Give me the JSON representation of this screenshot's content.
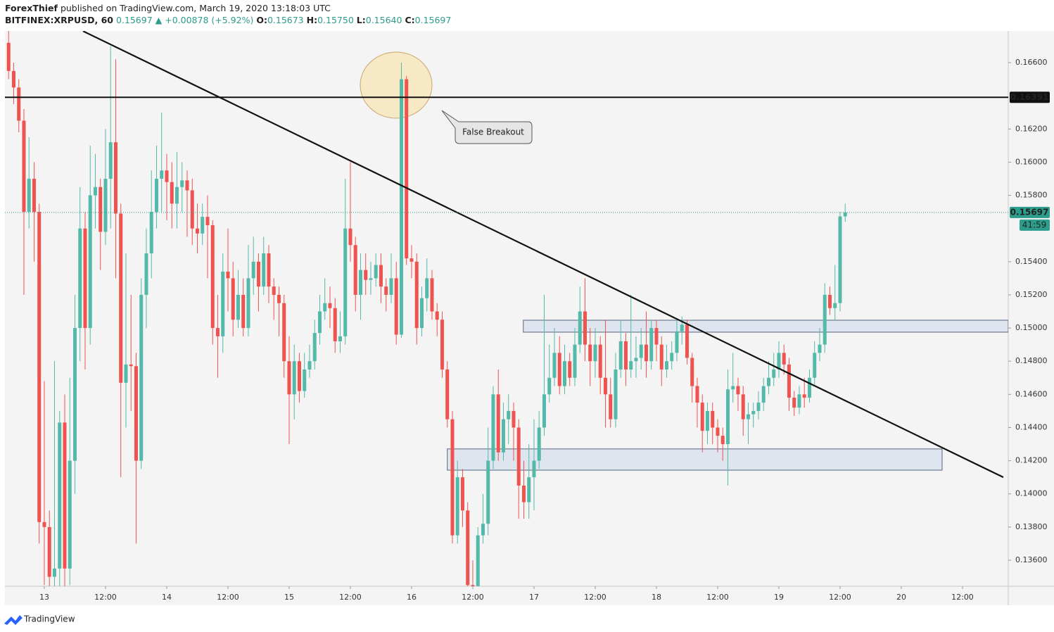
{
  "header": {
    "author": "ForexThief",
    "published": "published on TradingView.com, March 19, 2020 13:18:03 UTC",
    "symbol": "BITFINEX:XRPUSD, 60",
    "last": "0.15697",
    "change": "▲ +0.00878 (+5.92%)",
    "ohlc": [
      {
        "label": "O:",
        "value": "0.15673"
      },
      {
        "label": "H:",
        "value": "0.15750"
      },
      {
        "label": "L:",
        "value": "0.15640"
      },
      {
        "label": "C:",
        "value": "0.15697"
      }
    ]
  },
  "footer": "TradingView",
  "chart_data": {
    "type": "candlestick",
    "up_color": "#53b9a8",
    "down_color": "#ef5350",
    "grid": false,
    "xlim": [
      -7.72,
      188.97
    ],
    "ylim": [
      0.13443,
      0.16791
    ],
    "xticks": [
      {
        "value": 0,
        "label": "13"
      },
      {
        "value": 12,
        "label": "12:00"
      },
      {
        "value": 24,
        "label": "14"
      },
      {
        "value": 36,
        "label": "12:00"
      },
      {
        "value": 48,
        "label": "15"
      },
      {
        "value": 60,
        "label": "12:00"
      },
      {
        "value": 72,
        "label": "16"
      },
      {
        "value": 84,
        "label": "12:00"
      },
      {
        "value": 96,
        "label": "17"
      },
      {
        "value": 108,
        "label": "12:00"
      },
      {
        "value": 120,
        "label": "18"
      },
      {
        "value": 132,
        "label": "12:00"
      },
      {
        "value": 144,
        "label": "19"
      },
      {
        "value": 156,
        "label": "12:00"
      },
      {
        "value": 168,
        "label": "20"
      },
      {
        "value": 180,
        "label": "12:00"
      }
    ],
    "yticks": [
      {
        "value": 0.166,
        "label": "0.16600"
      },
      {
        "value": 0.162,
        "label": "0.16200"
      },
      {
        "value": 0.16,
        "label": "0.16000"
      },
      {
        "value": 0.158,
        "label": "0.15800"
      },
      {
        "value": 0.154,
        "label": "0.15400"
      },
      {
        "value": 0.152,
        "label": "0.15200"
      },
      {
        "value": 0.15,
        "label": "0.15000"
      },
      {
        "value": 0.148,
        "label": "0.14800"
      },
      {
        "value": 0.146,
        "label": "0.14600"
      },
      {
        "value": 0.144,
        "label": "0.14400"
      },
      {
        "value": 0.142,
        "label": "0.14200"
      },
      {
        "value": 0.14,
        "label": "0.14000"
      },
      {
        "value": 0.138,
        "label": "0.13800"
      },
      {
        "value": 0.136,
        "label": "0.13600"
      }
    ],
    "x": [
      -7,
      -6,
      -5,
      -4,
      -3,
      -2,
      -1,
      0,
      1,
      2,
      3,
      4,
      5,
      6,
      7,
      8,
      9,
      10,
      11,
      12,
      13,
      14,
      15,
      16,
      17,
      18,
      19,
      20,
      21,
      22,
      23,
      24,
      25,
      26,
      27,
      28,
      29,
      30,
      31,
      32,
      33,
      34,
      35,
      36,
      37,
      38,
      39,
      40,
      41,
      42,
      43,
      44,
      45,
      46,
      47,
      48,
      49,
      50,
      51,
      52,
      53,
      54,
      55,
      56,
      57,
      58,
      59,
      60,
      61,
      62,
      63,
      64,
      65,
      66,
      67,
      68,
      69,
      70,
      71,
      72,
      73,
      74,
      75,
      76,
      77,
      78,
      79,
      80,
      81,
      82,
      83,
      84,
      85,
      86,
      87,
      88,
      89,
      90,
      91,
      92,
      93,
      94,
      95,
      96,
      97,
      98,
      99,
      100,
      101,
      102,
      103,
      104,
      105,
      106,
      107,
      108,
      109,
      110,
      111,
      112,
      113,
      114,
      115,
      116,
      117,
      118,
      119,
      120,
      121,
      122,
      123,
      124,
      125,
      126,
      127,
      128,
      129,
      130,
      131,
      132,
      133,
      134,
      135,
      136,
      137,
      138,
      139,
      140,
      141,
      142,
      143,
      144,
      145,
      146,
      147,
      148,
      149,
      150,
      151,
      152,
      153,
      154,
      155,
      156,
      157
    ],
    "open": [
      0.1672,
      0.1655,
      0.1645,
      0.1625,
      0.157,
      0.159,
      0.157,
      0.1383,
      0.138,
      0.135,
      0.1355,
      0.1443,
      0.1355,
      0.142,
      0.15,
      0.156,
      0.15,
      0.158,
      0.1585,
      0.1558,
      0.159,
      0.1612,
      0.1569,
      0.1467,
      0.1478,
      0.1477,
      0.142,
      0.152,
      0.1545,
      0.157,
      0.159,
      0.1595,
      0.1588,
      0.1575,
      0.1585,
      0.1589,
      0.1583,
      0.156,
      0.1557,
      0.1567,
      0.1562,
      0.15,
      0.1495,
      0.1534,
      0.153,
      0.1505,
      0.152,
      0.15,
      0.153,
      0.154,
      0.1525,
      0.1545,
      0.1525,
      0.152,
      0.1515,
      0.148,
      0.146,
      0.148,
      0.1462,
      0.1475,
      0.148,
      0.1497,
      0.151,
      0.1515,
      0.1512,
      0.1492,
      0.1495,
      0.156,
      0.155,
      0.152,
      0.1535,
      0.1529,
      0.153,
      0.1538,
      0.1525,
      0.152,
      0.153,
      0.1496,
      0.165,
      0.1542,
      0.154,
      0.15,
      0.1518,
      0.153,
      0.151,
      0.1505,
      0.1475,
      0.1445,
      0.1375,
      0.141,
      0.139,
      0.1345,
      0.134,
      0.1375,
      0.1382,
      0.142,
      0.146,
      0.1425,
      0.1445,
      0.145,
      0.144,
      0.1405,
      0.1395,
      0.141,
      0.142,
      0.144,
      0.146,
      0.147,
      0.1485,
      0.1465,
      0.148,
      0.147,
      0.149,
      0.151,
      0.149,
      0.148,
      0.149,
      0.147,
      0.146,
      0.1445,
      0.1475,
      0.1492,
      0.1475,
      0.148,
      0.1482,
      0.149,
      0.148,
      0.15,
      0.149,
      0.1475,
      0.148,
      0.1485,
      0.1498,
      0.1502,
      0.1482,
      0.1465,
      0.1455,
      0.1438,
      0.145,
      0.144,
      0.1435,
      0.143,
      0.1463,
      0.1465,
      0.146,
      0.1445,
      0.1448,
      0.145,
      0.1455,
      0.1465,
      0.147,
      0.1475,
      0.1485,
      0.1478,
      0.1458,
      0.1452,
      0.146,
      0.1458,
      0.147,
      0.1485,
      0.149,
      0.152,
      0.1512,
      0.1515,
      0.15673
    ],
    "high": [
      0.168,
      0.166,
      0.165,
      0.1632,
      0.1615,
      0.16,
      0.1575,
      0.1468,
      0.139,
      0.148,
      0.145,
      0.146,
      0.147,
      0.152,
      0.1585,
      0.157,
      0.161,
      0.1605,
      0.159,
      0.162,
      0.167,
      0.1662,
      0.1575,
      0.1545,
      0.152,
      0.1485,
      0.153,
      0.156,
      0.1595,
      0.161,
      0.163,
      0.1605,
      0.16,
      0.1606,
      0.16,
      0.1595,
      0.159,
      0.1575,
      0.1575,
      0.158,
      0.1565,
      0.152,
      0.1545,
      0.156,
      0.154,
      0.1535,
      0.153,
      0.155,
      0.1555,
      0.1545,
      0.1555,
      0.155,
      0.153,
      0.1525,
      0.152,
      0.1495,
      0.149,
      0.1485,
      0.1485,
      0.149,
      0.1505,
      0.152,
      0.153,
      0.1525,
      0.1518,
      0.151,
      0.159,
      0.16,
      0.1555,
      0.1545,
      0.1545,
      0.154,
      0.1545,
      0.1545,
      0.153,
      0.1545,
      0.154,
      0.166,
      0.1652,
      0.155,
      0.1545,
      0.1525,
      0.1542,
      0.1535,
      0.1515,
      0.151,
      0.148,
      0.145,
      0.142,
      0.1415,
      0.1395,
      0.136,
      0.138,
      0.14,
      0.144,
      0.1465,
      0.1475,
      0.1455,
      0.146,
      0.1455,
      0.1445,
      0.142,
      0.143,
      0.1445,
      0.145,
      0.152,
      0.149,
      0.15,
      0.1495,
      0.149,
      0.1485,
      0.15,
      0.1525,
      0.153,
      0.15,
      0.15,
      0.1495,
      0.1505,
      0.147,
      0.1485,
      0.1505,
      0.1497,
      0.152,
      0.1495,
      0.15,
      0.151,
      0.1505,
      0.1505,
      0.1495,
      0.149,
      0.1492,
      0.1505,
      0.1507,
      0.1505,
      0.1485,
      0.147,
      0.146,
      0.1455,
      0.1455,
      0.1445,
      0.144,
      0.1475,
      0.1485,
      0.147,
      0.1465,
      0.1455,
      0.1455,
      0.1462,
      0.147,
      0.148,
      0.1485,
      0.1492,
      0.149,
      0.1482,
      0.1462,
      0.1465,
      0.147,
      0.1475,
      0.1492,
      0.15,
      0.1527,
      0.1525,
      0.1538,
      0.157,
      0.1575
    ],
    "low": [
      0.165,
      0.1635,
      0.1618,
      0.152,
      0.156,
      0.154,
      0.137,
      0.1345,
      0.134,
      0.134,
      0.134,
      0.134,
      0.1345,
      0.14,
      0.148,
      0.1475,
      0.149,
      0.156,
      0.1535,
      0.155,
      0.156,
      0.153,
      0.141,
      0.144,
      0.145,
      0.137,
      0.1415,
      0.15,
      0.153,
      0.156,
      0.157,
      0.1565,
      0.156,
      0.156,
      0.157,
      0.1555,
      0.155,
      0.1545,
      0.155,
      0.153,
      0.149,
      0.147,
      0.1485,
      0.151,
      0.1495,
      0.15,
      0.1495,
      0.1495,
      0.152,
      0.151,
      0.152,
      0.1515,
      0.1505,
      0.1495,
      0.147,
      0.143,
      0.1445,
      0.1455,
      0.1458,
      0.147,
      0.1475,
      0.149,
      0.1505,
      0.15,
      0.1485,
      0.1485,
      0.149,
      0.154,
      0.151,
      0.1505,
      0.152,
      0.152,
      0.1525,
      0.1515,
      0.151,
      0.1515,
      0.149,
      0.1494,
      0.1538,
      0.153,
      0.149,
      0.1495,
      0.151,
      0.1505,
      0.1495,
      0.147,
      0.144,
      0.137,
      0.137,
      0.138,
      0.1335,
      0.133,
      0.1335,
      0.137,
      0.1375,
      0.1415,
      0.142,
      0.142,
      0.143,
      0.142,
      0.1385,
      0.1385,
      0.1385,
      0.139,
      0.1415,
      0.1435,
      0.1455,
      0.1465,
      0.146,
      0.146,
      0.1465,
      0.1465,
      0.1485,
      0.148,
      0.1465,
      0.147,
      0.146,
      0.144,
      0.144,
      0.144,
      0.147,
      0.1465,
      0.147,
      0.147,
      0.1475,
      0.147,
      0.1475,
      0.148,
      0.1465,
      0.147,
      0.1475,
      0.148,
      0.149,
      0.1478,
      0.1455,
      0.144,
      0.1425,
      0.143,
      0.143,
      0.1425,
      0.142,
      0.1405,
      0.1455,
      0.145,
      0.1435,
      0.143,
      0.144,
      0.1445,
      0.145,
      0.146,
      0.1465,
      0.147,
      0.1472,
      0.145,
      0.1447,
      0.1448,
      0.1452,
      0.1455,
      0.1466,
      0.148,
      0.1485,
      0.1508,
      0.1505,
      0.151,
      0.1564
    ],
    "close": [
      0.1655,
      0.1645,
      0.1625,
      0.157,
      0.159,
      0.157,
      0.1383,
      0.138,
      0.135,
      0.1355,
      0.1443,
      0.1355,
      0.142,
      0.15,
      0.156,
      0.15,
      0.158,
      0.1585,
      0.1558,
      0.159,
      0.1612,
      0.1569,
      0.1467,
      0.1478,
      0.1477,
      0.142,
      0.152,
      0.1545,
      0.157,
      0.159,
      0.1595,
      0.1588,
      0.1575,
      0.1585,
      0.1589,
      0.1583,
      0.156,
      0.1557,
      0.1567,
      0.1562,
      0.15,
      0.1495,
      0.1534,
      0.153,
      0.1505,
      0.152,
      0.15,
      0.153,
      0.154,
      0.1525,
      0.1545,
      0.1525,
      0.152,
      0.1515,
      0.148,
      0.146,
      0.148,
      0.1462,
      0.1475,
      0.148,
      0.1497,
      0.151,
      0.1515,
      0.1512,
      0.1492,
      0.1495,
      0.156,
      0.155,
      0.152,
      0.1535,
      0.1529,
      0.153,
      0.1538,
      0.1525,
      0.152,
      0.153,
      0.1496,
      0.165,
      0.1542,
      0.154,
      0.15,
      0.1518,
      0.153,
      0.151,
      0.1505,
      0.1475,
      0.1445,
      0.1375,
      0.141,
      0.139,
      0.1345,
      0.134,
      0.1375,
      0.1382,
      0.142,
      0.146,
      0.1425,
      0.1445,
      0.145,
      0.144,
      0.1405,
      0.1395,
      0.141,
      0.142,
      0.144,
      0.146,
      0.147,
      0.1485,
      0.1465,
      0.148,
      0.147,
      0.149,
      0.151,
      0.149,
      0.148,
      0.149,
      0.147,
      0.146,
      0.1445,
      0.1475,
      0.1492,
      0.1475,
      0.148,
      0.1482,
      0.149,
      0.148,
      0.15,
      0.149,
      0.1475,
      0.148,
      0.1485,
      0.1498,
      0.1502,
      0.1482,
      0.1465,
      0.1455,
      0.1438,
      0.145,
      0.144,
      0.1435,
      0.143,
      0.1463,
      0.1465,
      0.146,
      0.1445,
      0.1448,
      0.145,
      0.1455,
      0.1465,
      0.147,
      0.1475,
      0.1485,
      0.1478,
      0.1458,
      0.1452,
      0.146,
      0.1458,
      0.147,
      0.1485,
      0.149,
      0.152,
      0.1512,
      0.1515,
      0.15673,
      0.15697
    ],
    "trendline": {
      "x": [
        7.6,
        188
      ],
      "y": [
        0.1679,
        0.141
      ]
    },
    "zones": [
      {
        "x": [
          93.9,
          188.97
        ],
        "y": [
          0.15047,
          0.14975
        ]
      },
      {
        "x": [
          79,
          176
        ],
        "y": [
          0.14271,
          0.14143
        ]
      }
    ],
    "hline": {
      "value": 0.16391,
      "label": "0.16391"
    },
    "last_price": {
      "value": 0.15697,
      "label": "0.15697"
    },
    "countdown": "41:59",
    "annotation": "False Breakout"
  }
}
